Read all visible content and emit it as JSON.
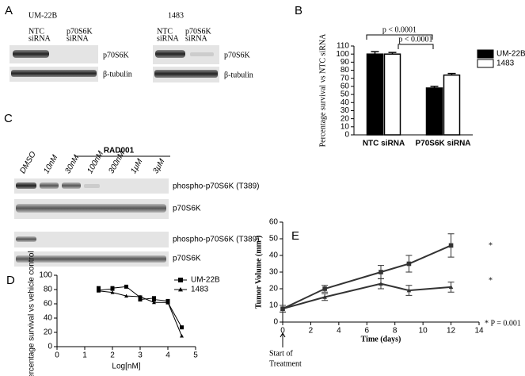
{
  "panel_labels": [
    "A",
    "B",
    "C",
    "D",
    "E"
  ],
  "blot_a": [
    {
      "title": "UM-22B",
      "lanes": [
        "NTC",
        "siRNA",
        "p70S6K",
        "siRNA"
      ],
      "bands": [
        "p70S6K",
        "β-tubulin"
      ]
    },
    {
      "title": "1483",
      "lanes": [
        "NTC",
        "siRNA",
        "p70S6K",
        "siRNA"
      ],
      "bands": [
        "p70S6K",
        "β-tubulin"
      ]
    }
  ],
  "blot_c": {
    "treatment": "RAD001",
    "lanes": [
      "DMSO",
      "10nM",
      "30nM",
      "100nM",
      "300nM",
      "1μM",
      "3μM"
    ],
    "bands": [
      "phospho-p70S6K (T389)",
      "p70S6K",
      "phospho-p70S6K (T389)",
      "p70S6K"
    ]
  },
  "chart_data": [
    {
      "type": "bar",
      "ylabel": "Percentage survival vs NTC siRNA",
      "categories": [
        "NTC siRNA",
        "P70S6K siRNA"
      ],
      "series": [
        {
          "name": "UM-22B",
          "color": "#000000",
          "values": [
            100,
            58
          ],
          "errors": [
            3,
            2
          ]
        },
        {
          "name": "1483",
          "color": "#ffffff",
          "values": [
            100,
            74
          ],
          "errors": [
            2,
            2
          ]
        }
      ],
      "ylim": [
        0,
        110
      ],
      "yticks": [
        0,
        10,
        20,
        30,
        40,
        50,
        60,
        70,
        80,
        90,
        100,
        110
      ],
      "annotations": [
        "p < 0.0001",
        "p < 0.0001"
      ]
    },
    {
      "type": "scatter",
      "xlabel": "Log[nM]",
      "ylabel": "Percentage survival vs vehicle control",
      "series": [
        {
          "name": "UM-22B",
          "color": "#000000",
          "marker": "square",
          "x": [
            1.5,
            1.5,
            2,
            2,
            2.5,
            3,
            3,
            3.5,
            3.5,
            4,
            4,
            4.5
          ],
          "values": [
            82,
            79,
            81,
            82,
            84,
            69,
            66,
            68,
            66,
            64,
            62,
            27
          ]
        },
        {
          "name": "1483",
          "color": "#000000",
          "marker": "triangle",
          "x": [
            1.5,
            2,
            2.5,
            3,
            3.5,
            4,
            4.5
          ],
          "values": [
            78,
            76,
            71,
            70,
            62,
            62,
            15
          ]
        }
      ],
      "xlim": [
        0,
        5
      ],
      "xticks": [
        0,
        1,
        2,
        3,
        4,
        5
      ],
      "ylim": [
        0,
        100
      ],
      "yticks": [
        0,
        20,
        40,
        60,
        80,
        100
      ]
    },
    {
      "type": "line",
      "xlabel": "Time (days)",
      "ylabel": "Tumor Volume (mm³)",
      "x": [
        0,
        3,
        7,
        9,
        12
      ],
      "series": [
        {
          "color": "#333333",
          "marker": "square",
          "values": [
            8,
            20,
            30,
            35,
            46
          ],
          "errors": [
            2,
            2,
            4,
            5,
            7
          ]
        },
        {
          "color": "#333333",
          "marker": "triangle",
          "values": [
            8,
            15,
            23,
            19,
            21
          ],
          "errors": [
            2,
            2,
            3,
            3,
            3
          ]
        }
      ],
      "xlim": [
        0,
        14
      ],
      "xticks": [
        0,
        2,
        4,
        6,
        8,
        10,
        12,
        14
      ],
      "ylim": [
        0,
        60
      ],
      "yticks": [
        0,
        10,
        20,
        30,
        40,
        50,
        60
      ],
      "annotations": [
        "*",
        "*",
        "* P = 0.001",
        "Start of",
        "Treatment"
      ]
    }
  ]
}
